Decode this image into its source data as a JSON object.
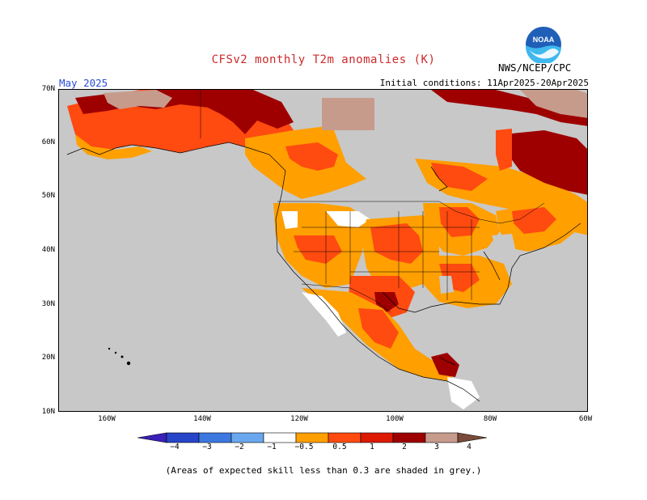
{
  "title": "CFSv2 monthly T2m anomalies (K)",
  "agency": "NWS/NCEP/CPC",
  "period": "May 2025",
  "initial_conditions": "Initial conditions: 11Apr2025-20Apr2025",
  "logo": {
    "text": "NOAA",
    "icon": "noaa-logo-icon"
  },
  "lat_labels": [
    "70N",
    "60N",
    "50N",
    "40N",
    "30N",
    "20N",
    "10N"
  ],
  "lon_labels": [
    "160W",
    "140W",
    "120W",
    "100W",
    "80W",
    "60W"
  ],
  "colorbar": {
    "labels": [
      "−4",
      "−3",
      "−2",
      "−1",
      "−0.5",
      "0.5",
      "1",
      "2",
      "3",
      "4"
    ],
    "colors": [
      "#3a1fb8",
      "#2645c9",
      "#3c78e0",
      "#6aa7ee",
      "#ffffff",
      "#ff9f00",
      "#ff4a10",
      "#dd1a00",
      "#9e0000",
      "#c79b8c",
      "#7a4a3a"
    ]
  },
  "footnote": "(Areas of expected skill less than 0.3 are shaded in grey.)",
  "legend_colors": {
    "grey": "#c8c8c8",
    "ocean": "#c8c8c8",
    "white": "#ffffff",
    "orange": "#ff9f00",
    "red_orange": "#ff4a10",
    "red": "#dd1a00",
    "dark_red": "#9e0000",
    "pink_brown": "#c79b8c"
  }
}
